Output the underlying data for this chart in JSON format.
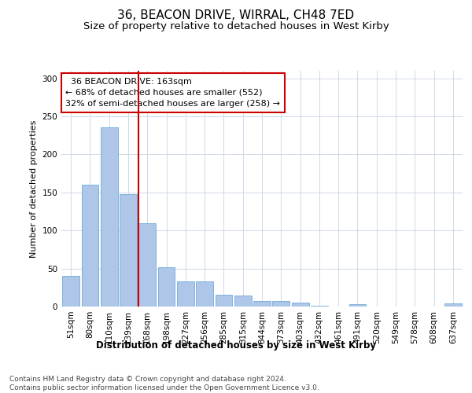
{
  "title": "36, BEACON DRIVE, WIRRAL, CH48 7ED",
  "subtitle": "Size of property relative to detached houses in West Kirby",
  "xlabel": "Distribution of detached houses by size in West Kirby",
  "ylabel": "Number of detached properties",
  "footnote": "Contains HM Land Registry data © Crown copyright and database right 2024.\nContains public sector information licensed under the Open Government Licence v3.0.",
  "categories": [
    "51sqm",
    "80sqm",
    "110sqm",
    "139sqm",
    "168sqm",
    "198sqm",
    "227sqm",
    "256sqm",
    "285sqm",
    "315sqm",
    "344sqm",
    "373sqm",
    "403sqm",
    "432sqm",
    "461sqm",
    "491sqm",
    "520sqm",
    "549sqm",
    "578sqm",
    "608sqm",
    "637sqm"
  ],
  "values": [
    40,
    160,
    236,
    148,
    110,
    52,
    33,
    33,
    16,
    14,
    7,
    7,
    5,
    1,
    0,
    3,
    0,
    0,
    0,
    0,
    4
  ],
  "bar_color": "#aec6e8",
  "bar_edge_color": "#5a9fd4",
  "grid_color": "#d0d8e8",
  "annotation_text": "  36 BEACON DRIVE: 163sqm\n← 68% of detached houses are smaller (552)\n32% of semi-detached houses are larger (258) →",
  "annotation_box_color": "#ffffff",
  "annotation_box_edge": "#cc0000",
  "vline_x": 3.55,
  "vline_color": "#cc0000",
  "ylim": [
    0,
    310
  ],
  "title_fontsize": 11,
  "subtitle_fontsize": 9.5,
  "ylabel_fontsize": 8,
  "xlabel_fontsize": 8.5,
  "tick_fontsize": 7.5,
  "annotation_fontsize": 8,
  "footnote_fontsize": 6.5
}
